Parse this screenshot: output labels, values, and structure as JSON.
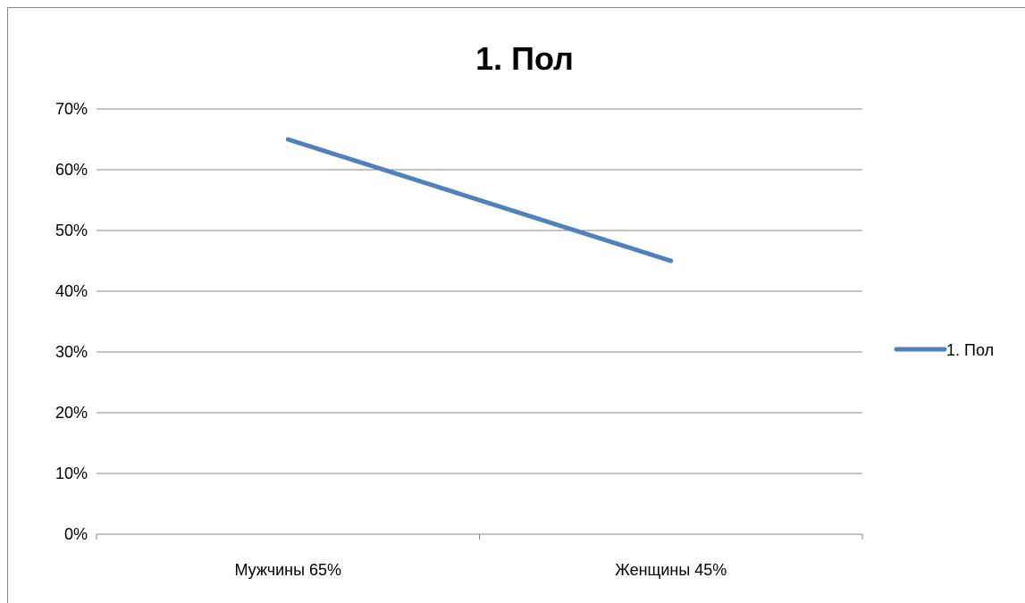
{
  "chart_data": {
    "type": "line",
    "title": "1. Пол",
    "categories": [
      "Мужчины 65%",
      "Женщины 45%"
    ],
    "series": [
      {
        "name": "1. Пол",
        "values": [
          0.65,
          0.45
        ]
      }
    ],
    "y_ticks": [
      "0%",
      "10%",
      "20%",
      "30%",
      "40%",
      "50%",
      "60%",
      "70%"
    ],
    "ylim": [
      0,
      0.7
    ],
    "grid": true,
    "legend_position": "right",
    "colors": {
      "series": "#4F81BD",
      "gridline": "#868686",
      "axis": "#868686"
    }
  }
}
